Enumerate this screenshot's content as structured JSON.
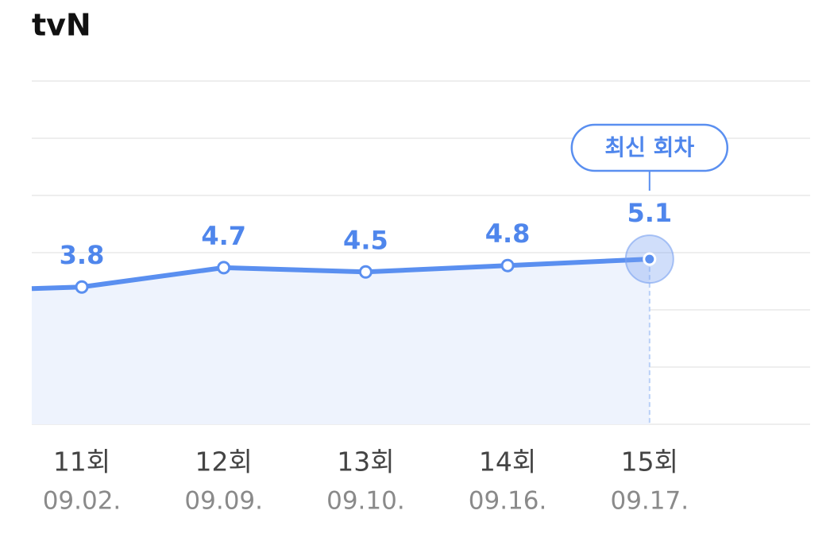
{
  "chart_data": {
    "type": "line",
    "title": "tvN",
    "categories": [
      "11회",
      "12회",
      "13회",
      "14회",
      "15회"
    ],
    "x_sublabels": [
      "09.02.",
      "09.09.",
      "09.10.",
      "09.16.",
      "09.17."
    ],
    "values": [
      3.8,
      4.7,
      4.5,
      4.8,
      5.1
    ],
    "color": "#5a8ff0",
    "ylim": [
      -2.6,
      13.4
    ],
    "grid": true,
    "annotation": "최신 회차"
  }
}
